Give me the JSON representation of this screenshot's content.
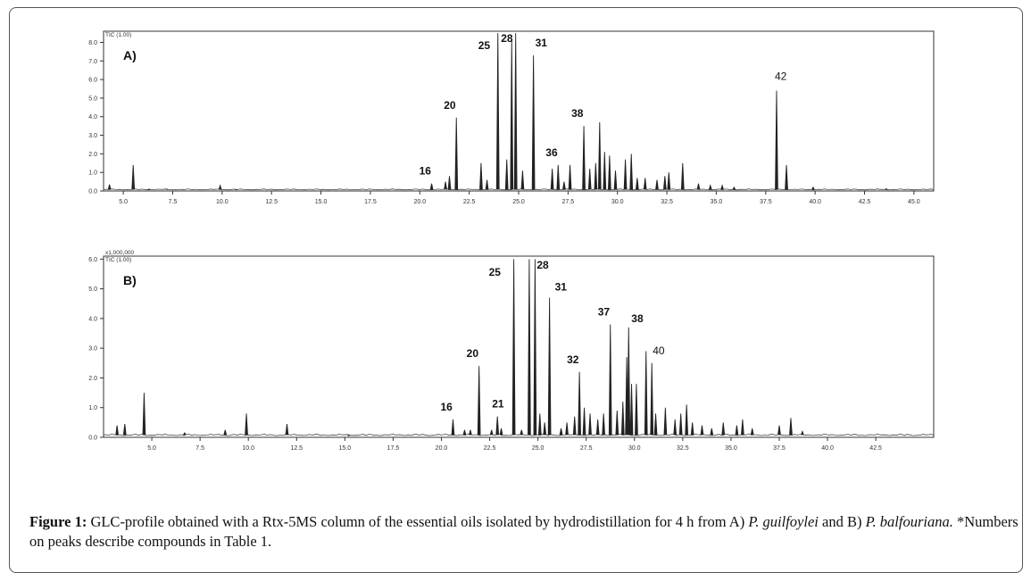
{
  "chart_data": [
    {
      "type": "line",
      "panel_label": "A)",
      "corner_label": "TIC (1.00)",
      "xlim": [
        4.0,
        46.0
      ],
      "ylim": [
        0,
        8.6
      ],
      "x_ticks": [
        5.0,
        7.5,
        10.0,
        12.5,
        15.0,
        17.5,
        20.0,
        22.5,
        25.0,
        27.5,
        30.0,
        32.5,
        35.0,
        37.5,
        40.0,
        42.5,
        45.0
      ],
      "x_tick_labels": [
        "5.0",
        "7.5",
        "10.0",
        "12.5",
        "15.0",
        "17.5",
        "20.0",
        "22.5",
        "25.0",
        "27.5",
        "30.0",
        "32.5",
        "35.0",
        "37.5",
        "40.0",
        "42.5",
        "45.0"
      ],
      "y_ticks": [
        0,
        1,
        2,
        3,
        4,
        5,
        6,
        7,
        8
      ],
      "y_tick_labels": [
        "0.0",
        "1.0",
        "2.0",
        "3.0",
        "4.0",
        "5.0",
        "6.0",
        "7.0",
        "8.0"
      ],
      "peaks": [
        {
          "x": 4.3,
          "y": 0.35
        },
        {
          "x": 5.5,
          "y": 1.4
        },
        {
          "x": 6.3,
          "y": 0.1
        },
        {
          "x": 7.2,
          "y": 0.1
        },
        {
          "x": 9.9,
          "y": 0.3
        },
        {
          "x": 10.7,
          "y": 0.08
        },
        {
          "x": 20.6,
          "y": 0.4,
          "label": "16"
        },
        {
          "x": 21.3,
          "y": 0.5
        },
        {
          "x": 21.5,
          "y": 0.8
        },
        {
          "x": 21.85,
          "y": 3.95,
          "label": "20"
        },
        {
          "x": 23.1,
          "y": 1.5
        },
        {
          "x": 23.4,
          "y": 0.6
        },
        {
          "x": 23.95,
          "y": 8.5,
          "label": "25"
        },
        {
          "x": 24.4,
          "y": 1.7
        },
        {
          "x": 24.65,
          "y": 8.1,
          "label": "28"
        },
        {
          "x": 24.85,
          "y": 8.5
        },
        {
          "x": 25.2,
          "y": 1.1
        },
        {
          "x": 25.75,
          "y": 7.3,
          "label": "31"
        },
        {
          "x": 26.7,
          "y": 1.2
        },
        {
          "x": 27.0,
          "y": 1.4,
          "label": "36"
        },
        {
          "x": 27.3,
          "y": 0.5
        },
        {
          "x": 27.6,
          "y": 1.4
        },
        {
          "x": 28.3,
          "y": 3.5,
          "label": "38"
        },
        {
          "x": 28.6,
          "y": 1.2
        },
        {
          "x": 28.9,
          "y": 1.5
        },
        {
          "x": 29.1,
          "y": 3.7
        },
        {
          "x": 29.35,
          "y": 2.1
        },
        {
          "x": 29.6,
          "y": 1.9
        },
        {
          "x": 29.9,
          "y": 1.1
        },
        {
          "x": 30.4,
          "y": 1.7
        },
        {
          "x": 30.7,
          "y": 2.0
        },
        {
          "x": 31.0,
          "y": 0.7
        },
        {
          "x": 31.4,
          "y": 0.7
        },
        {
          "x": 32.0,
          "y": 0.6
        },
        {
          "x": 32.4,
          "y": 0.8
        },
        {
          "x": 32.6,
          "y": 1.0
        },
        {
          "x": 33.3,
          "y": 1.5
        },
        {
          "x": 34.1,
          "y": 0.4
        },
        {
          "x": 34.7,
          "y": 0.3
        },
        {
          "x": 35.3,
          "y": 0.3
        },
        {
          "x": 35.9,
          "y": 0.2
        },
        {
          "x": 38.05,
          "y": 5.4,
          "label": "42"
        },
        {
          "x": 38.55,
          "y": 1.4
        },
        {
          "x": 39.9,
          "y": 0.2
        },
        {
          "x": 43.6,
          "y": 0.12
        }
      ]
    },
    {
      "type": "line",
      "panel_label": "B)",
      "top_label": "x1,000,000",
      "corner_label": "TIC (1.00)",
      "xlim": [
        2.5,
        45.5
      ],
      "ylim": [
        0,
        6.1
      ],
      "x_ticks": [
        5.0,
        7.5,
        10.0,
        12.5,
        15.0,
        17.5,
        20.0,
        22.5,
        25.0,
        27.5,
        30.0,
        32.5,
        35.0,
        37.5,
        40.0,
        42.5
      ],
      "x_tick_labels": [
        "5.0",
        "7.5",
        "10.0",
        "12.5",
        "15.0",
        "17.5",
        "20.0",
        "22.5",
        "25.0",
        "27.5",
        "30.0",
        "32.5",
        "35.0",
        "37.5",
        "40.0",
        "42.5"
      ],
      "y_ticks": [
        0,
        1,
        2,
        3,
        4,
        5,
        6
      ],
      "y_tick_labels": [
        "0.0",
        "1.0",
        "2.0",
        "3.0",
        "4.0",
        "5.0",
        "6.0"
      ],
      "peaks": [
        {
          "x": 3.2,
          "y": 0.4
        },
        {
          "x": 3.6,
          "y": 0.45
        },
        {
          "x": 4.6,
          "y": 1.5
        },
        {
          "x": 6.7,
          "y": 0.15
        },
        {
          "x": 8.8,
          "y": 0.25
        },
        {
          "x": 9.9,
          "y": 0.8
        },
        {
          "x": 12.0,
          "y": 0.45
        },
        {
          "x": 15.2,
          "y": 0.05
        },
        {
          "x": 20.6,
          "y": 0.6,
          "label": "16"
        },
        {
          "x": 21.2,
          "y": 0.25
        },
        {
          "x": 21.5,
          "y": 0.25
        },
        {
          "x": 21.95,
          "y": 2.4,
          "label": "20"
        },
        {
          "x": 22.6,
          "y": 0.25
        },
        {
          "x": 22.9,
          "y": 0.7,
          "label": "21"
        },
        {
          "x": 23.1,
          "y": 0.3
        },
        {
          "x": 23.75,
          "y": 6.0,
          "label": "25"
        },
        {
          "x": 24.15,
          "y": 0.25
        },
        {
          "x": 24.55,
          "y": 6.0
        },
        {
          "x": 24.85,
          "y": 6.0,
          "label": "28"
        },
        {
          "x": 25.1,
          "y": 0.8
        },
        {
          "x": 25.35,
          "y": 0.5
        },
        {
          "x": 25.6,
          "y": 4.7,
          "label": "31"
        },
        {
          "x": 26.2,
          "y": 0.3
        },
        {
          "x": 26.5,
          "y": 0.5
        },
        {
          "x": 26.9,
          "y": 0.7
        },
        {
          "x": 27.15,
          "y": 2.2,
          "label": "32"
        },
        {
          "x": 27.4,
          "y": 1.0
        },
        {
          "x": 27.7,
          "y": 0.8
        },
        {
          "x": 28.1,
          "y": 0.6
        },
        {
          "x": 28.4,
          "y": 0.8
        },
        {
          "x": 28.75,
          "y": 3.8,
          "label": "37"
        },
        {
          "x": 29.1,
          "y": 0.9
        },
        {
          "x": 29.4,
          "y": 1.2
        },
        {
          "x": 29.6,
          "y": 2.7
        },
        {
          "x": 29.7,
          "y": 3.7,
          "label": "38"
        },
        {
          "x": 29.85,
          "y": 1.8
        },
        {
          "x": 30.1,
          "y": 1.8
        },
        {
          "x": 30.6,
          "y": 2.9
        },
        {
          "x": 30.9,
          "y": 2.5,
          "label": "40"
        },
        {
          "x": 31.1,
          "y": 0.8
        },
        {
          "x": 31.6,
          "y": 1.0
        },
        {
          "x": 32.1,
          "y": 0.6
        },
        {
          "x": 32.4,
          "y": 0.8
        },
        {
          "x": 32.7,
          "y": 1.1
        },
        {
          "x": 33.0,
          "y": 0.5
        },
        {
          "x": 33.5,
          "y": 0.4
        },
        {
          "x": 34.0,
          "y": 0.3
        },
        {
          "x": 34.6,
          "y": 0.5
        },
        {
          "x": 35.3,
          "y": 0.4
        },
        {
          "x": 35.6,
          "y": 0.6
        },
        {
          "x": 36.1,
          "y": 0.3
        },
        {
          "x": 37.5,
          "y": 0.4
        },
        {
          "x": 38.1,
          "y": 0.65
        },
        {
          "x": 38.7,
          "y": 0.2
        }
      ]
    }
  ],
  "caption": {
    "label": "Figure 1:",
    "text_1": " GLC-profile obtained with a Rtx-5MS column of the essential oils isolated by hydrodistillation for 4 h from A) ",
    "species_1": "P. guilfoylei",
    "text_2": " and B) ",
    "species_2": "P. balfouriana.",
    "text_3": " *Numbers on peaks describe compounds in Table 1."
  }
}
